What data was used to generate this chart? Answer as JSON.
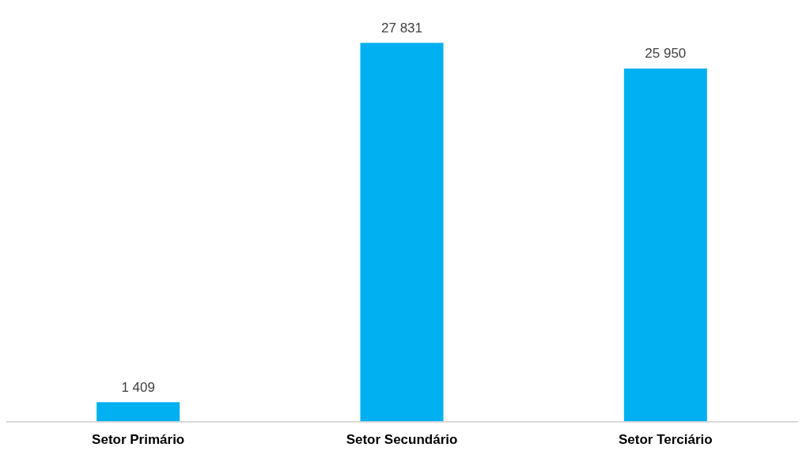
{
  "chart_data": {
    "type": "bar",
    "categories": [
      "Setor Primário",
      "Setor Secundário",
      "Setor Terciário"
    ],
    "values": [
      1409,
      27831,
      25950
    ],
    "value_labels": [
      "1 409",
      "27 831",
      "25 950"
    ],
    "color": "#00b0f0",
    "grid": false,
    "legend": false
  }
}
